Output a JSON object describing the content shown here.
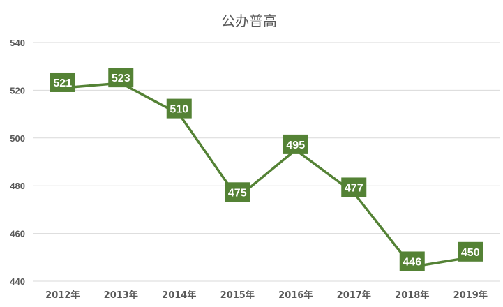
{
  "chart_data": {
    "type": "line",
    "title": "公办普高",
    "xlabel": "",
    "ylabel": "",
    "categories": [
      "2012年",
      "2013年",
      "2014年",
      "2015年",
      "2016年",
      "2017年",
      "2018年",
      "2019年"
    ],
    "series": [
      {
        "values": [
          521,
          523,
          510,
          475,
          495,
          477,
          446,
          450
        ]
      }
    ],
    "ylim": [
      440,
      540
    ],
    "yticks": [
      440,
      460,
      480,
      500,
      520,
      540
    ],
    "grid": true,
    "legend": "none",
    "data_labels": true,
    "colors": {
      "line": "#548235",
      "label_bg": "#548235",
      "label_text": "#ffffff",
      "grid": "#d9d9d9",
      "text": "#595959"
    }
  }
}
